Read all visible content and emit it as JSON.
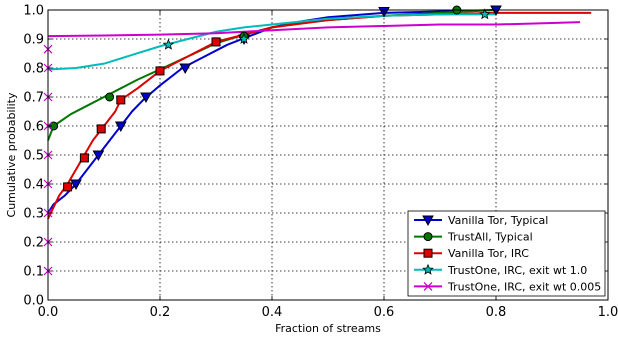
{
  "chart_data": {
    "type": "line",
    "xlabel": "Fraction of streams",
    "ylabel": "Cumulative probability",
    "xlim": [
      0.0,
      1.0
    ],
    "ylim": [
      0.0,
      1.0
    ],
    "x_ticks": [
      "0.0",
      "0.2",
      "0.4",
      "0.6",
      "0.8",
      "1.0"
    ],
    "y_ticks": [
      "0.0",
      "0.1",
      "0.2",
      "0.3",
      "0.4",
      "0.5",
      "0.6",
      "0.7",
      "0.8",
      "0.9",
      "1.0"
    ],
    "grid": true,
    "legend_position": "bottom-right",
    "series": [
      {
        "name": "Vanilla Tor, Typical",
        "color": "#0000cc",
        "marker": "triangle-down",
        "points": [
          [
            0.0,
            0.3
          ],
          [
            0.01,
            0.33
          ],
          [
            0.03,
            0.36
          ],
          [
            0.05,
            0.4
          ],
          [
            0.07,
            0.45
          ],
          [
            0.09,
            0.5
          ],
          [
            0.11,
            0.55
          ],
          [
            0.13,
            0.6
          ],
          [
            0.15,
            0.65
          ],
          [
            0.17,
            0.69
          ],
          [
            0.2,
            0.74
          ],
          [
            0.24,
            0.8
          ],
          [
            0.28,
            0.84
          ],
          [
            0.32,
            0.88
          ],
          [
            0.36,
            0.91
          ],
          [
            0.4,
            0.94
          ],
          [
            0.45,
            0.96
          ],
          [
            0.5,
            0.975
          ],
          [
            0.6,
            0.99
          ],
          [
            0.7,
            0.995
          ],
          [
            0.8,
            1.0
          ]
        ],
        "marker_points": [
          [
            0.05,
            0.4
          ],
          [
            0.09,
            0.5
          ],
          [
            0.13,
            0.6
          ],
          [
            0.175,
            0.7
          ],
          [
            0.245,
            0.8
          ],
          [
            0.35,
            0.9
          ],
          [
            0.6,
            0.995
          ],
          [
            0.8,
            1.0
          ]
        ]
      },
      {
        "name": "TrustAll, Typical",
        "color": "#007700",
        "marker": "circle",
        "points": [
          [
            0.0,
            0.55
          ],
          [
            0.01,
            0.6
          ],
          [
            0.04,
            0.64
          ],
          [
            0.07,
            0.67
          ],
          [
            0.1,
            0.7
          ],
          [
            0.13,
            0.73
          ],
          [
            0.16,
            0.76
          ],
          [
            0.2,
            0.795
          ],
          [
            0.25,
            0.84
          ],
          [
            0.3,
            0.885
          ],
          [
            0.35,
            0.915
          ],
          [
            0.4,
            0.94
          ],
          [
            0.45,
            0.955
          ],
          [
            0.5,
            0.965
          ],
          [
            0.6,
            0.98
          ],
          [
            0.7,
            0.99
          ],
          [
            0.8,
            1.0
          ]
        ],
        "marker_points": [
          [
            0.01,
            0.6
          ],
          [
            0.11,
            0.7
          ],
          [
            0.2,
            0.79
          ],
          [
            0.3,
            0.89
          ],
          [
            0.35,
            0.91
          ],
          [
            0.73,
            1.0
          ]
        ]
      },
      {
        "name": "Vanilla Tor, IRC",
        "color": "#dd0000",
        "marker": "square",
        "points": [
          [
            0.0,
            0.28
          ],
          [
            0.01,
            0.32
          ],
          [
            0.02,
            0.36
          ],
          [
            0.035,
            0.4
          ],
          [
            0.05,
            0.45
          ],
          [
            0.065,
            0.5
          ],
          [
            0.08,
            0.55
          ],
          [
            0.1,
            0.6
          ],
          [
            0.12,
            0.65
          ],
          [
            0.13,
            0.69
          ],
          [
            0.16,
            0.73
          ],
          [
            0.2,
            0.79
          ],
          [
            0.25,
            0.84
          ],
          [
            0.3,
            0.89
          ],
          [
            0.35,
            0.915
          ],
          [
            0.4,
            0.94
          ],
          [
            0.5,
            0.965
          ],
          [
            0.6,
            0.98
          ],
          [
            0.7,
            0.985
          ],
          [
            0.8,
            0.99
          ],
          [
            0.97,
            0.99
          ]
        ],
        "marker_points": [
          [
            0.035,
            0.39
          ],
          [
            0.065,
            0.49
          ],
          [
            0.095,
            0.59
          ],
          [
            0.13,
            0.69
          ],
          [
            0.2,
            0.79
          ],
          [
            0.3,
            0.89
          ]
        ]
      },
      {
        "name": "TrustOne, IRC, exit wt 1.0",
        "color": "#00bbbb",
        "marker": "star",
        "points": [
          [
            0.0,
            0.795
          ],
          [
            0.05,
            0.8
          ],
          [
            0.1,
            0.815
          ],
          [
            0.15,
            0.845
          ],
          [
            0.2,
            0.875
          ],
          [
            0.25,
            0.9
          ],
          [
            0.3,
            0.925
          ],
          [
            0.35,
            0.94
          ],
          [
            0.4,
            0.95
          ],
          [
            0.45,
            0.96
          ],
          [
            0.5,
            0.97
          ],
          [
            0.6,
            0.98
          ],
          [
            0.7,
            0.985
          ],
          [
            0.8,
            0.985
          ]
        ],
        "marker_points": [
          [
            0.215,
            0.88
          ],
          [
            0.35,
            0.9
          ],
          [
            0.78,
            0.985
          ]
        ]
      },
      {
        "name": "TrustOne, IRC, exit wt 0.005",
        "color": "#cc00cc",
        "marker": "x",
        "points": [
          [
            0.0,
            0.91
          ],
          [
            0.1,
            0.912
          ],
          [
            0.2,
            0.915
          ],
          [
            0.3,
            0.92
          ],
          [
            0.4,
            0.93
          ],
          [
            0.5,
            0.94
          ],
          [
            0.6,
            0.945
          ],
          [
            0.7,
            0.95
          ],
          [
            0.8,
            0.95
          ],
          [
            0.9,
            0.955
          ],
          [
            0.95,
            0.958
          ]
        ],
        "marker_points": [
          [
            0.0,
            0.1
          ],
          [
            0.0,
            0.2
          ],
          [
            0.0,
            0.3
          ],
          [
            0.0,
            0.4
          ],
          [
            0.0,
            0.5
          ],
          [
            0.0,
            0.6
          ],
          [
            0.0,
            0.7
          ],
          [
            0.0,
            0.8
          ],
          [
            0.0,
            0.865
          ]
        ]
      }
    ]
  }
}
